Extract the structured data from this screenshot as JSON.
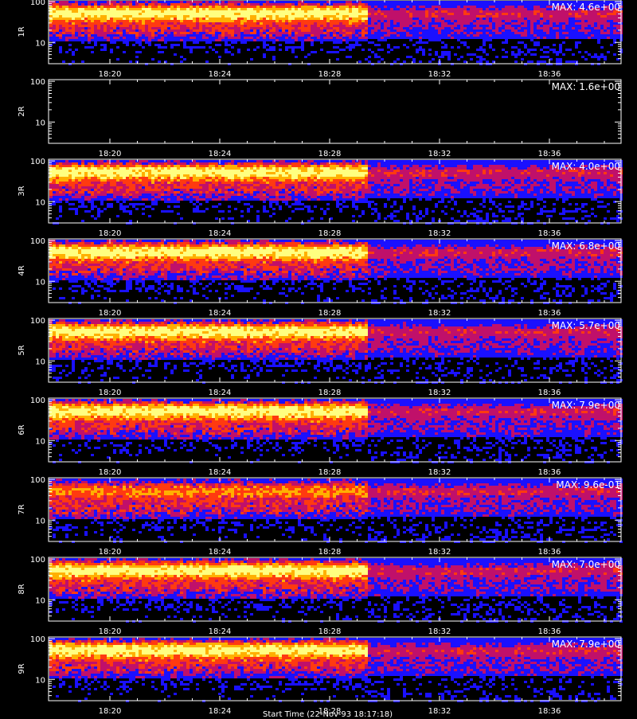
{
  "chart_data": [
    {
      "type": "heatmap",
      "panel_label": "1R",
      "max_label": "MAX: 4.6e+00"
    },
    {
      "type": "heatmap",
      "panel_label": "2R",
      "max_label": "MAX: 1.6e+00"
    },
    {
      "type": "heatmap",
      "panel_label": "3R",
      "max_label": "MAX: 4.0e+00"
    },
    {
      "type": "heatmap",
      "panel_label": "4R",
      "max_label": "MAX: 6.8e+00"
    },
    {
      "type": "heatmap",
      "panel_label": "5R",
      "max_label": "MAX: 5.7e+00"
    },
    {
      "type": "heatmap",
      "panel_label": "6R",
      "max_label": "MAX: 7.9e+00"
    },
    {
      "type": "heatmap",
      "panel_label": "7R",
      "max_label": "MAX: 9.6e-01"
    },
    {
      "type": "heatmap",
      "panel_label": "8R",
      "max_label": "MAX: 7.0e+00"
    },
    {
      "type": "heatmap",
      "panel_label": "9R",
      "max_label": "MAX: 7.9e+00"
    }
  ],
  "axes": {
    "x_ticks": [
      "18:20",
      "18:24",
      "18:28",
      "18:32",
      "18:36"
    ],
    "y_ticks": [
      "100",
      "10"
    ],
    "y_scale": "log",
    "ylim": [
      3,
      110
    ]
  },
  "footer_text": "Start Time (22-Nov-93 18:17:18)",
  "colors": {
    "background": "#000000",
    "axes": "#ffffff",
    "colormap": [
      "#000000",
      "#1a10ff",
      "#c0106a",
      "#ff3a10",
      "#ffb000",
      "#ffff80"
    ]
  }
}
